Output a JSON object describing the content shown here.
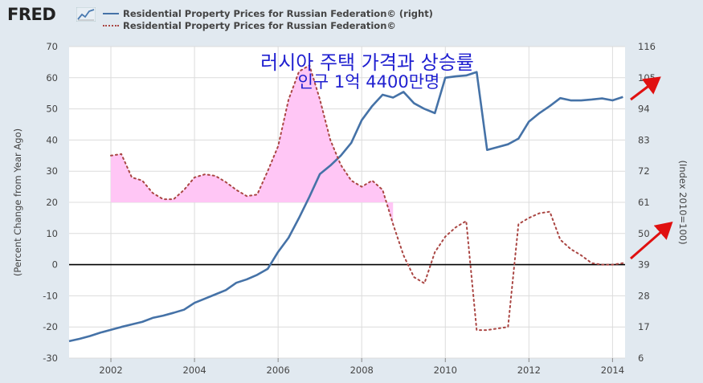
{
  "header": {
    "logo_text": "FRED",
    "logo_icon": "line-chart-icon",
    "legend": [
      {
        "label": "Residential Property Prices for Russian Federation© (right)",
        "style": "solid",
        "color": "#4572a7"
      },
      {
        "label": "Residential Property Prices for Russian Federation©",
        "style": "dotted",
        "color": "#aa4643"
      }
    ]
  },
  "annotation": {
    "title_line1": "러시아 주택 가격과 상승률",
    "title_line2": "인구 1억 4400만명",
    "color": "#1f1fd0",
    "arrow_color": "#e01010"
  },
  "chart_data": {
    "type": "line",
    "title": "Residential Property Prices for Russian Federation©",
    "ylabel_left": "(Percent Change from Year Ago)",
    "ylabel_right": "(Index 2010=100)",
    "x_ticks": [
      "2002",
      "2004",
      "2006",
      "2008",
      "2010",
      "2012",
      "2014"
    ],
    "x_range": [
      2001.0,
      2014.3
    ],
    "y_left_ticks": [
      "70",
      "60",
      "50",
      "40",
      "30",
      "20",
      "10",
      "0",
      "-10",
      "-20",
      "-30"
    ],
    "y_left_range": [
      -30,
      70
    ],
    "y_right_ticks": [
      "116",
      "105",
      "94",
      "83",
      "72",
      "61",
      "50",
      "39",
      "28",
      "17",
      "6"
    ],
    "y_right_range": [
      6,
      116
    ],
    "highlight_fill": "#ffc6f5",
    "series": [
      {
        "name": "Residential Property Prices for Russian Federation© (right)",
        "axis": "right",
        "style": "solid",
        "color": "#4572a7",
        "x": [
          2001.0,
          2001.25,
          2001.5,
          2001.75,
          2002.0,
          2002.25,
          2002.5,
          2002.75,
          2003.0,
          2003.25,
          2003.5,
          2003.75,
          2004.0,
          2004.25,
          2004.5,
          2004.75,
          2005.0,
          2005.25,
          2005.5,
          2005.75,
          2006.0,
          2006.25,
          2006.5,
          2006.75,
          2007.0,
          2007.25,
          2007.5,
          2007.75,
          2008.0,
          2008.25,
          2008.5,
          2008.75,
          2009.0,
          2009.25,
          2009.5,
          2009.75,
          2010.0,
          2010.25,
          2010.5,
          2010.75,
          2011.0,
          2011.25,
          2011.5,
          2011.75,
          2012.0,
          2012.25,
          2012.5,
          2012.75,
          2013.0,
          2013.25,
          2013.5,
          2013.75,
          2014.0,
          2014.25
        ],
        "values": [
          12.0,
          12.8,
          13.8,
          15.0,
          16.0,
          17.0,
          17.9,
          18.8,
          20.2,
          21.0,
          22.0,
          23.1,
          25.5,
          27.0,
          28.5,
          30.0,
          32.6,
          33.8,
          35.4,
          37.5,
          43.5,
          48.5,
          55.5,
          63.0,
          71.0,
          74.0,
          77.5,
          82.0,
          90.0,
          95.0,
          99.0,
          98.0,
          100.0,
          96.0,
          94.0,
          92.5,
          105.0,
          105.5,
          105.8,
          107.0,
          79.5,
          80.5,
          81.5,
          83.5,
          89.5,
          92.5,
          95.0,
          97.8,
          97.0,
          97.0,
          97.3,
          97.7,
          97.0,
          98.2
        ]
      },
      {
        "name": "Residential Property Prices for Russian Federation©",
        "axis": "left",
        "style": "dotted",
        "color": "#aa4643",
        "x": [
          2002.0,
          2002.25,
          2002.5,
          2002.75,
          2003.0,
          2003.25,
          2003.5,
          2003.75,
          2004.0,
          2004.25,
          2004.5,
          2004.75,
          2005.0,
          2005.25,
          2005.5,
          2005.75,
          2006.0,
          2006.25,
          2006.5,
          2006.75,
          2007.0,
          2007.25,
          2007.5,
          2007.75,
          2008.0,
          2008.25,
          2008.5,
          2008.75,
          2009.0,
          2009.25,
          2009.5,
          2009.75,
          2010.0,
          2010.25,
          2010.5,
          2010.75,
          2011.0,
          2011.25,
          2011.5,
          2011.75,
          2012.0,
          2012.25,
          2012.5,
          2012.75,
          2013.0,
          2013.25,
          2013.5,
          2013.75,
          2014.0,
          2014.25
        ],
        "values": [
          35.0,
          35.5,
          28.0,
          27.0,
          23.0,
          21.0,
          21.0,
          24.0,
          28.0,
          29.0,
          28.5,
          26.5,
          24.0,
          22.0,
          22.5,
          30.0,
          38.0,
          53.0,
          62.0,
          64.0,
          53.0,
          40.0,
          32.0,
          27.0,
          25.0,
          27.0,
          24.0,
          13.0,
          3.0,
          -4.0,
          -6.0,
          4.0,
          9.0,
          12.0,
          14.0,
          -21.0,
          -21.0,
          -20.5,
          -20.0,
          13.0,
          15.0,
          16.5,
          17.0,
          8.0,
          5.0,
          3.0,
          0.5,
          0.0,
          0.0,
          0.5
        ]
      }
    ],
    "highlight_range": [
      2002.0,
      2008.75
    ]
  }
}
